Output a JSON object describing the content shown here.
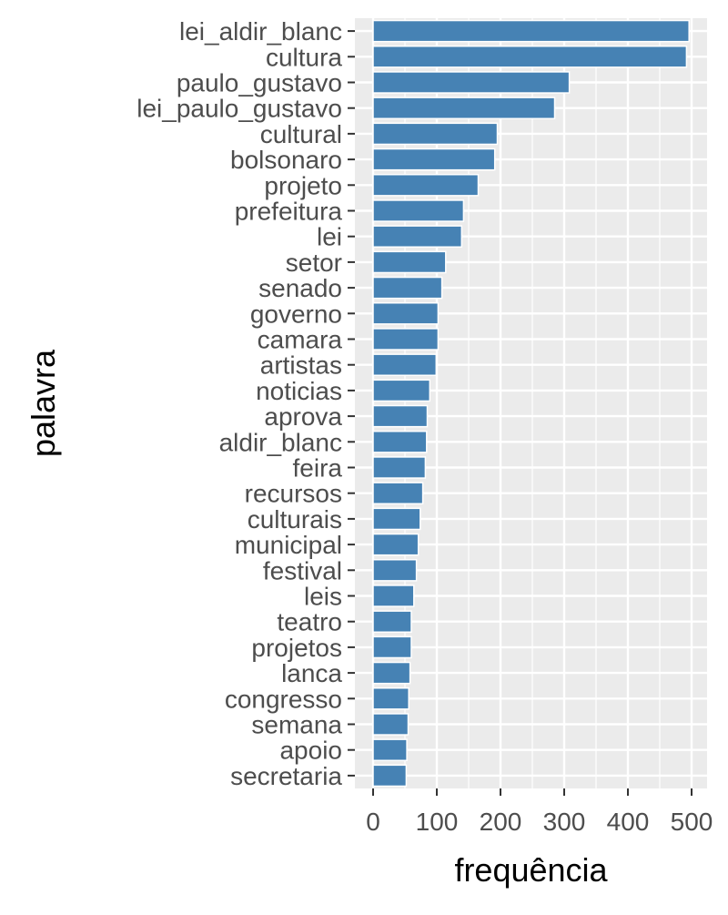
{
  "chart_data": {
    "type": "bar",
    "orientation": "horizontal",
    "xlabel": "frequência",
    "ylabel": "palavra",
    "xlim": [
      0,
      520
    ],
    "x_ticks": [
      0,
      100,
      200,
      300,
      400,
      500
    ],
    "grid": true,
    "panel_background": "#ebebeb",
    "bar_color": "#4682b4",
    "categories": [
      "lei_aldir_blanc",
      "cultura",
      "paulo_gustavo",
      "lei_paulo_gustavo",
      "cultural",
      "bolsonaro",
      "projeto",
      "prefeitura",
      "lei",
      "setor",
      "senado",
      "governo",
      "camara",
      "artistas",
      "noticias",
      "aprova",
      "aldir_blanc",
      "feira",
      "recursos",
      "culturais",
      "municipal",
      "festival",
      "leis",
      "teatro",
      "projetos",
      "lanca",
      "congresso",
      "semana",
      "apoio",
      "secretaria"
    ],
    "values": [
      496,
      492,
      308,
      285,
      195,
      191,
      165,
      142,
      139,
      114,
      108,
      102,
      102,
      99,
      89,
      85,
      84,
      82,
      78,
      74,
      71,
      68,
      64,
      60,
      60,
      58,
      56,
      55,
      53,
      52
    ]
  }
}
